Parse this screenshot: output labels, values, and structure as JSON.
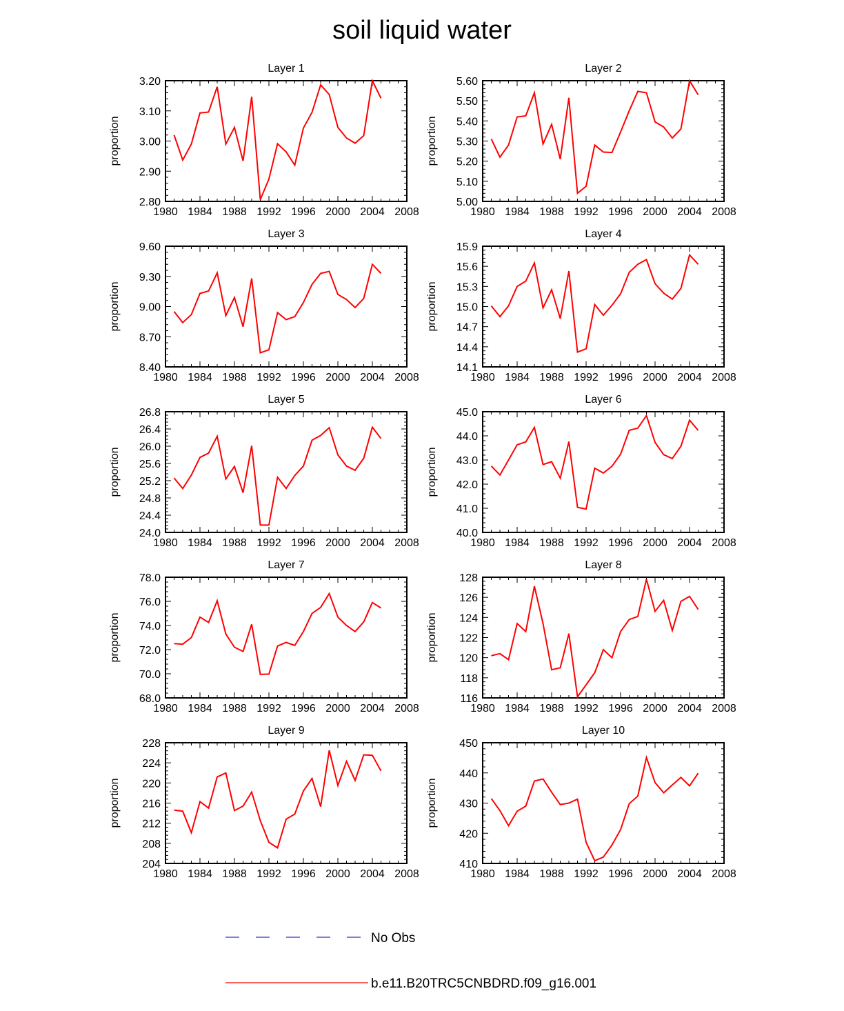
{
  "title": "soil liquid water",
  "colors": {
    "series": "#ff0000",
    "no_obs": "#3333cc",
    "axis": "#000000"
  },
  "legend": [
    {
      "label": "No Obs",
      "style": "dashed",
      "color": "#3333cc"
    },
    {
      "label": "b.e11.B20TRC5CNBDRD.f09_g16.001",
      "style": "solid",
      "color": "#ff0000"
    }
  ],
  "chart_data": [
    {
      "type": "line",
      "title": "Layer 1",
      "ylabel": "proportion",
      "xlim": [
        1980,
        2008
      ],
      "xticks": [
        1980,
        1984,
        1988,
        1992,
        1996,
        2000,
        2004,
        2008
      ],
      "ylim": [
        2.8,
        3.2
      ],
      "yticks": [
        "2.80",
        "2.90",
        "3.00",
        "3.10",
        "3.20"
      ],
      "series": [
        {
          "name": "b.e11.B20TRC5CNBDRD.f09_g16.001",
          "x": [
            1981,
            1982,
            1983,
            1984,
            1985,
            1986,
            1987,
            1988,
            1989,
            1990,
            1991,
            1992,
            1993,
            1994,
            1995,
            1996,
            1997,
            1998,
            1999,
            2000,
            2001,
            2002,
            2003,
            2004,
            2005
          ],
          "values": [
            3.02,
            2.937,
            2.99,
            3.093,
            3.096,
            3.18,
            2.99,
            3.045,
            2.934,
            3.147,
            2.806,
            2.874,
            2.991,
            2.964,
            2.92,
            3.043,
            3.095,
            3.186,
            3.154,
            3.045,
            3.01,
            2.993,
            3.018,
            3.2,
            3.142
          ]
        }
      ]
    },
    {
      "type": "line",
      "title": "Layer 2",
      "ylabel": "proportion",
      "xlim": [
        1980,
        2008
      ],
      "xticks": [
        1980,
        1984,
        1988,
        1992,
        1996,
        2000,
        2004,
        2008
      ],
      "ylim": [
        5.0,
        5.6
      ],
      "yticks": [
        "5.00",
        "5.10",
        "5.20",
        "5.30",
        "5.40",
        "5.50",
        "5.60"
      ],
      "series": [
        {
          "name": "b.e11.B20TRC5CNBDRD.f09_g16.001",
          "x": [
            1981,
            1982,
            1983,
            1984,
            1985,
            1986,
            1987,
            1988,
            1989,
            1990,
            1991,
            1992,
            1993,
            1994,
            1995,
            1996,
            1997,
            1998,
            1999,
            2000,
            2001,
            2002,
            2003,
            2004,
            2005
          ],
          "values": [
            5.31,
            5.22,
            5.28,
            5.42,
            5.425,
            5.54,
            5.285,
            5.383,
            5.21,
            5.515,
            5.04,
            5.075,
            5.28,
            5.245,
            5.243,
            5.345,
            5.45,
            5.547,
            5.54,
            5.395,
            5.37,
            5.315,
            5.36,
            5.6,
            5.53
          ]
        }
      ]
    },
    {
      "type": "line",
      "title": "Layer 3",
      "ylabel": "proportion",
      "xlim": [
        1980,
        2008
      ],
      "xticks": [
        1980,
        1984,
        1988,
        1992,
        1996,
        2000,
        2004,
        2008
      ],
      "ylim": [
        8.4,
        9.6
      ],
      "yticks": [
        "8.40",
        "8.70",
        "9.00",
        "9.30",
        "9.60"
      ],
      "series": [
        {
          "name": "b.e11.B20TRC5CNBDRD.f09_g16.001",
          "x": [
            1981,
            1982,
            1983,
            1984,
            1985,
            1986,
            1987,
            1988,
            1989,
            1990,
            1991,
            1992,
            1993,
            1994,
            1995,
            1996,
            1997,
            1998,
            1999,
            2000,
            2001,
            2002,
            2003,
            2004,
            2005
          ],
          "values": [
            8.95,
            8.84,
            8.92,
            9.13,
            9.155,
            9.335,
            8.91,
            9.09,
            8.8,
            9.28,
            8.54,
            8.57,
            8.94,
            8.87,
            8.9,
            9.04,
            9.22,
            9.33,
            9.35,
            9.12,
            9.07,
            8.99,
            9.08,
            9.42,
            9.33
          ]
        }
      ]
    },
    {
      "type": "line",
      "title": "Layer 4",
      "ylabel": "proportion",
      "xlim": [
        1980,
        2008
      ],
      "xticks": [
        1980,
        1984,
        1988,
        1992,
        1996,
        2000,
        2004,
        2008
      ],
      "ylim": [
        14.1,
        15.9
      ],
      "yticks": [
        "14.1",
        "14.4",
        "14.7",
        "15.0",
        "15.3",
        "15.6",
        "15.9"
      ],
      "series": [
        {
          "name": "b.e11.B20TRC5CNBDRD.f09_g16.001",
          "x": [
            1981,
            1982,
            1983,
            1984,
            1985,
            1986,
            1987,
            1988,
            1989,
            1990,
            1991,
            1992,
            1993,
            1994,
            1995,
            1996,
            1997,
            1998,
            1999,
            2000,
            2001,
            2002,
            2003,
            2004,
            2005
          ],
          "values": [
            15.01,
            14.85,
            15.01,
            15.3,
            15.38,
            15.65,
            14.98,
            15.25,
            14.82,
            15.53,
            14.32,
            14.37,
            15.03,
            14.87,
            15.02,
            15.19,
            15.51,
            15.63,
            15.7,
            15.34,
            15.2,
            15.11,
            15.27,
            15.77,
            15.63
          ]
        }
      ]
    },
    {
      "type": "line",
      "title": "Layer 5",
      "ylabel": "proportion",
      "xlim": [
        1980,
        2008
      ],
      "xticks": [
        1980,
        1984,
        1988,
        1992,
        1996,
        2000,
        2004,
        2008
      ],
      "ylim": [
        24.0,
        26.8
      ],
      "yticks": [
        "24.0",
        "24.4",
        "24.8",
        "25.2",
        "25.6",
        "26.0",
        "26.4",
        "26.8"
      ],
      "series": [
        {
          "name": "b.e11.B20TRC5CNBDRD.f09_g16.001",
          "x": [
            1981,
            1982,
            1983,
            1984,
            1985,
            1986,
            1987,
            1988,
            1989,
            1990,
            1991,
            1992,
            1993,
            1994,
            1995,
            1996,
            1997,
            1998,
            1999,
            2000,
            2001,
            2002,
            2003,
            2004,
            2005
          ],
          "values": [
            25.26,
            25.02,
            25.33,
            25.74,
            25.84,
            26.23,
            25.24,
            25.53,
            24.92,
            26.01,
            24.17,
            24.17,
            25.28,
            25.02,
            25.32,
            25.54,
            26.14,
            26.25,
            26.43,
            25.8,
            25.54,
            25.44,
            25.72,
            26.44,
            26.18
          ]
        }
      ]
    },
    {
      "type": "line",
      "title": "Layer 6",
      "ylabel": "proportion",
      "xlim": [
        1980,
        2008
      ],
      "xticks": [
        1980,
        1984,
        1988,
        1992,
        1996,
        2000,
        2004,
        2008
      ],
      "ylim": [
        40.0,
        45.0
      ],
      "yticks": [
        "40.0",
        "41.0",
        "42.0",
        "43.0",
        "44.0",
        "45.0"
      ],
      "series": [
        {
          "name": "b.e11.B20TRC5CNBDRD.f09_g16.001",
          "x": [
            1981,
            1982,
            1983,
            1984,
            1985,
            1986,
            1987,
            1988,
            1989,
            1990,
            1991,
            1992,
            1993,
            1994,
            1995,
            1996,
            1997,
            1998,
            1999,
            2000,
            2001,
            2002,
            2003,
            2004,
            2005
          ],
          "values": [
            42.75,
            42.38,
            43.0,
            43.63,
            43.75,
            44.35,
            42.81,
            42.93,
            42.25,
            43.76,
            41.04,
            40.97,
            42.66,
            42.46,
            42.74,
            43.24,
            44.23,
            44.32,
            44.84,
            43.73,
            43.22,
            43.06,
            43.57,
            44.65,
            44.23
          ]
        }
      ]
    },
    {
      "type": "line",
      "title": "Layer 7",
      "ylabel": "proportion",
      "xlim": [
        1980,
        2008
      ],
      "xticks": [
        1980,
        1984,
        1988,
        1992,
        1996,
        2000,
        2004,
        2008
      ],
      "ylim": [
        68.0,
        78.0
      ],
      "yticks": [
        "68.0",
        "70.0",
        "72.0",
        "74.0",
        "76.0",
        "78.0"
      ],
      "series": [
        {
          "name": "b.e11.B20TRC5CNBDRD.f09_g16.001",
          "x": [
            1981,
            1982,
            1983,
            1984,
            1985,
            1986,
            1987,
            1988,
            1989,
            1990,
            1991,
            1992,
            1993,
            1994,
            1995,
            1996,
            1997,
            1998,
            1999,
            2000,
            2001,
            2002,
            2003,
            2004,
            2005
          ],
          "values": [
            72.5,
            72.45,
            73.0,
            74.7,
            74.25,
            76.05,
            73.3,
            72.2,
            71.85,
            74.1,
            69.95,
            69.97,
            72.3,
            72.6,
            72.35,
            73.5,
            75.0,
            75.5,
            76.65,
            74.7,
            74.0,
            73.5,
            74.3,
            75.9,
            75.45
          ]
        }
      ]
    },
    {
      "type": "line",
      "title": "Layer 8",
      "ylabel": "proportion",
      "xlim": [
        1980,
        2008
      ],
      "xticks": [
        1980,
        1984,
        1988,
        1992,
        1996,
        2000,
        2004,
        2008
      ],
      "ylim": [
        116,
        128
      ],
      "yticks": [
        "116",
        "118",
        "120",
        "122",
        "124",
        "126",
        "128"
      ],
      "series": [
        {
          "name": "b.e11.B20TRC5CNBDRD.f09_g16.001",
          "x": [
            1981,
            1982,
            1983,
            1984,
            1985,
            1986,
            1987,
            1988,
            1989,
            1990,
            1991,
            1992,
            1993,
            1994,
            1995,
            1996,
            1997,
            1998,
            1999,
            2000,
            2001,
            2002,
            2003,
            2004,
            2005
          ],
          "values": [
            120.2,
            120.4,
            119.8,
            123.4,
            122.6,
            127.1,
            123.4,
            118.8,
            119.0,
            122.4,
            116.1,
            117.3,
            118.5,
            120.8,
            120.0,
            122.6,
            123.8,
            124.1,
            127.8,
            124.6,
            125.7,
            122.7,
            125.6,
            126.1,
            124.8
          ]
        }
      ]
    },
    {
      "type": "line",
      "title": "Layer 9",
      "ylabel": "proportion",
      "xlim": [
        1980,
        2008
      ],
      "xticks": [
        1980,
        1984,
        1988,
        1992,
        1996,
        2000,
        2004,
        2008
      ],
      "ylim": [
        204,
        228
      ],
      "yticks": [
        "204",
        "208",
        "212",
        "216",
        "220",
        "224",
        "228"
      ],
      "series": [
        {
          "name": "b.e11.B20TRC5CNBDRD.f09_g16.001",
          "x": [
            1981,
            1982,
            1983,
            1984,
            1985,
            1986,
            1987,
            1988,
            1989,
            1990,
            1991,
            1992,
            1993,
            1994,
            1995,
            1996,
            1997,
            1998,
            1999,
            2000,
            2001,
            2002,
            2003,
            2004,
            2005
          ],
          "values": [
            214.6,
            214.4,
            210.1,
            216.3,
            215.0,
            221.2,
            222.0,
            214.5,
            215.4,
            218.2,
            212.5,
            208.2,
            207.1,
            212.8,
            213.8,
            218.4,
            220.9,
            215.3,
            226.5,
            219.5,
            224.3,
            220.5,
            225.6,
            225.5,
            222.4
          ]
        }
      ]
    },
    {
      "type": "line",
      "title": "Layer 10",
      "ylabel": "proportion",
      "xlim": [
        1980,
        2008
      ],
      "xticks": [
        1980,
        1984,
        1988,
        1992,
        1996,
        2000,
        2004,
        2008
      ],
      "ylim": [
        410,
        450
      ],
      "yticks": [
        "410",
        "420",
        "430",
        "440",
        "450"
      ],
      "series": [
        {
          "name": "b.e11.B20TRC5CNBDRD.f09_g16.001",
          "x": [
            1981,
            1982,
            1983,
            1984,
            1985,
            1986,
            1987,
            1988,
            1989,
            1990,
            1991,
            1992,
            1993,
            1994,
            1995,
            1996,
            1997,
            1998,
            1999,
            2000,
            2001,
            2002,
            2003,
            2004,
            2005
          ],
          "values": [
            431.5,
            427.5,
            422.5,
            427.3,
            429.0,
            437.3,
            438.0,
            433.6,
            429.5,
            430.0,
            431.3,
            417.0,
            410.9,
            412.1,
            416.1,
            421.2,
            429.8,
            432.3,
            445.1,
            436.8,
            433.4,
            436.0,
            438.5,
            435.7,
            439.9
          ]
        }
      ]
    }
  ]
}
